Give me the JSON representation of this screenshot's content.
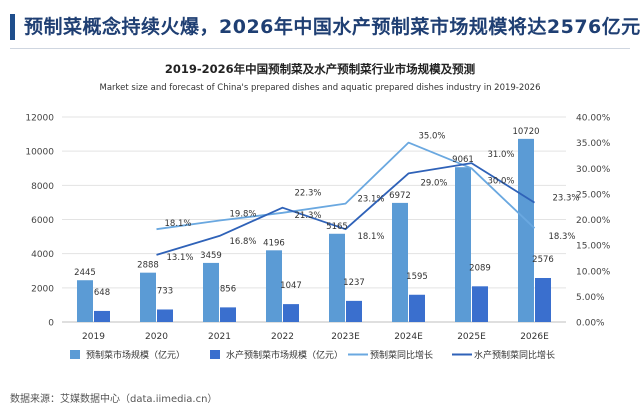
{
  "header": {
    "title": "预制菜概念持续火爆，2026年中国水产预制菜市场规模将达2576亿元"
  },
  "source_text": "数据来源：艾媒数据中心（data.iimedia.cn）",
  "colors": {
    "prepared_bar": "#5b9bd5",
    "aquatic_bar": "#3a6fce",
    "prepared_line": "#6aa8e0",
    "aquatic_line": "#2f62b8",
    "title": "#1f3f73"
  },
  "chart_data": {
    "type": "bar",
    "title": "2019-2026年中国预制菜及水产预制菜行业市场规模及预测",
    "subtitle": "Market size and forecast of China's prepared dishes and aquatic prepared dishes industry in 2019-2026",
    "categories": [
      "2019",
      "2020",
      "2021",
      "2022",
      "2023E",
      "2024E",
      "2025E",
      "2026E"
    ],
    "ylim_left": [
      0,
      12000
    ],
    "yticks_left": [
      "0",
      "2000",
      "4000",
      "6000",
      "8000",
      "10000",
      "12000"
    ],
    "ylim_right": [
      0,
      40
    ],
    "yticks_right": [
      "0.00%",
      "5.00%",
      "10.00%",
      "15.00%",
      "20.00%",
      "25.00%",
      "30.00%",
      "35.00%",
      "40.00%"
    ],
    "grid": true,
    "legend_position": "bottom",
    "series": [
      {
        "name": "预制菜市场规模（亿元）",
        "type": "bar",
        "axis": "left",
        "values": [
          2445,
          2888,
          3459,
          4196,
          5165,
          6972,
          9061,
          10720
        ],
        "labels": [
          "2445",
          "2888",
          "3459",
          "4196",
          "5165",
          "6972",
          "9061",
          "10720"
        ]
      },
      {
        "name": "水产预制菜市场规模（亿元）",
        "type": "bar",
        "axis": "left",
        "values": [
          648,
          733,
          856,
          1047,
          1237,
          1595,
          2089,
          2576
        ],
        "labels": [
          "648",
          "733",
          "856",
          "1047",
          "1237",
          "1595",
          "2089",
          "2576"
        ]
      },
      {
        "name": "预制菜同比增长",
        "type": "line",
        "axis": "right",
        "x": [
          "2020",
          "2021",
          "2022",
          "2023E",
          "2024E",
          "2025E",
          "2026E"
        ],
        "values": [
          18.1,
          19.8,
          21.3,
          23.1,
          35.0,
          30.0,
          18.3
        ],
        "labels": [
          "18.1%",
          "19.8%",
          "21.3%",
          "23.1%",
          "35.0%",
          "30.0%",
          "18.3%"
        ]
      },
      {
        "name": "水产预制菜同比增长",
        "type": "line",
        "axis": "right",
        "x": [
          "2020",
          "2021",
          "2022",
          "2023E",
          "2024E",
          "2025E",
          "2026E"
        ],
        "values": [
          13.1,
          16.8,
          22.3,
          18.1,
          29.0,
          31.0,
          23.3
        ],
        "labels": [
          "13.1%",
          "16.8%",
          "22.3%",
          "18.1%",
          "29.0%",
          "31.0%",
          "23.3%"
        ]
      }
    ]
  }
}
